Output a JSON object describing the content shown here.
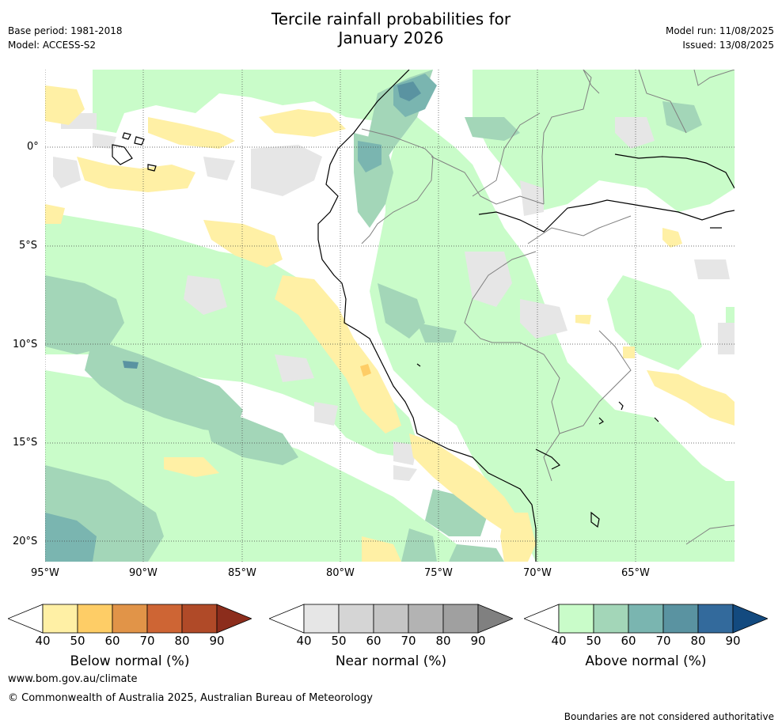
{
  "title": {
    "line1": "Tercile rainfall probabilities for",
    "line2": "January 2026"
  },
  "meta": {
    "base_period": "Base period: 1981-2018",
    "model": "Model: ACCESS-S2",
    "model_run": "Model run: 11/08/2025",
    "issued": "Issued: 13/08/2025"
  },
  "map": {
    "lat_labels": [
      "0°",
      "5°S",
      "10°S",
      "15°S",
      "20°S"
    ],
    "lon_labels": [
      "95°W",
      "90°W",
      "85°W",
      "80°W",
      "75°W",
      "70°W",
      "65°W"
    ],
    "colors": {
      "ocean_land": "#ffffff",
      "gridline": "#444444",
      "coastline": "#000000",
      "border": "#808080"
    }
  },
  "colorbars": [
    {
      "label": "Below normal (%)",
      "ticks": [
        "40",
        "50",
        "60",
        "70",
        "80",
        "90"
      ],
      "colors": [
        "#ffffff",
        "#fff0a5",
        "#fecd66",
        "#e19448",
        "#ce6534",
        "#b04a28",
        "#8c2d1c"
      ]
    },
    {
      "label": "Near normal (%)",
      "ticks": [
        "40",
        "50",
        "60",
        "70",
        "80",
        "90"
      ],
      "colors": [
        "#ffffff",
        "#e6e6e6",
        "#d5d5d5",
        "#c5c5c5",
        "#b3b3b3",
        "#a0a0a0",
        "#808080"
      ]
    },
    {
      "label": "Above normal (%)",
      "ticks": [
        "40",
        "50",
        "60",
        "70",
        "80",
        "90"
      ],
      "colors": [
        "#ffffff",
        "#c9fcc9",
        "#a3d6b8",
        "#7ab5b0",
        "#5a93a1",
        "#336a9c",
        "#134a7f"
      ]
    }
  ],
  "footer": {
    "url": "www.bom.gov.au/climate",
    "copyright": "© Commonwealth of Australia 2025, Australian Bureau of Meteorology",
    "note": "Boundaries are not considered authoritative"
  }
}
